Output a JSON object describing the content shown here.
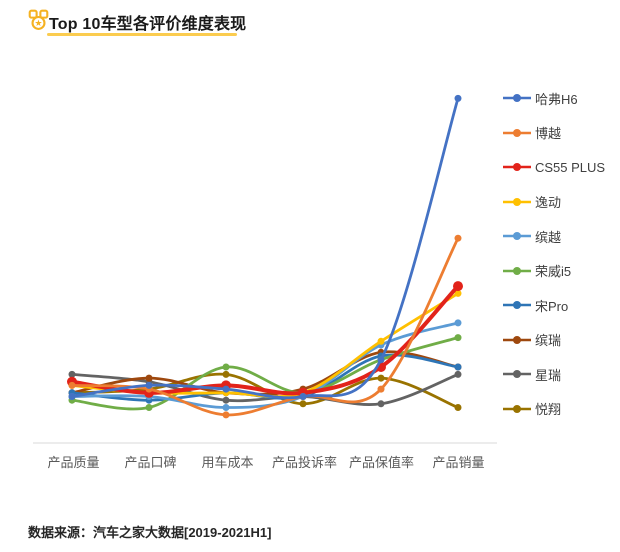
{
  "header": {
    "title": "Top 10车型各评价维度表现",
    "icon": "medal-icon"
  },
  "chart_data": {
    "type": "line",
    "title": "Top 10车型各评价维度表现",
    "categories": [
      "产品质量",
      "产品口碑",
      "用车成本",
      "产品投诉率",
      "产品保值率",
      "产品销量"
    ],
    "series": [
      {
        "name": "哈弗H6",
        "color": "#4472C4",
        "line_width": 2.8,
        "marker_r": 3.5,
        "values": [
          14,
          17,
          16,
          14,
          24,
          95
        ]
      },
      {
        "name": "博越",
        "color": "#ED7D31",
        "line_width": 2.8,
        "marker_r": 3.5,
        "values": [
          17,
          16,
          9,
          14,
          16,
          57
        ]
      },
      {
        "name": "CS55 PLUS",
        "color": "#E2231A",
        "line_width": 4,
        "marker_r": 5,
        "values": [
          18,
          15,
          17,
          15,
          22,
          44
        ]
      },
      {
        "name": "逸动",
        "color": "#FFC000",
        "line_width": 2.8,
        "marker_r": 3.5,
        "values": [
          17,
          15,
          15,
          15,
          29,
          42
        ]
      },
      {
        "name": "缤越",
        "color": "#5B9BD5",
        "line_width": 2.8,
        "marker_r": 3.5,
        "values": [
          14,
          14,
          11,
          14,
          28,
          34
        ]
      },
      {
        "name": "荣威i5",
        "color": "#70AD47",
        "line_width": 2.8,
        "marker_r": 3.5,
        "values": [
          13,
          11,
          22,
          15,
          24,
          30
        ]
      },
      {
        "name": "宋Pro",
        "color": "#2E75B6",
        "line_width": 2.8,
        "marker_r": 3.5,
        "values": [
          15,
          13,
          15,
          14,
          25,
          22
        ]
      },
      {
        "name": "缤瑞",
        "color": "#9E480E",
        "line_width": 2.8,
        "marker_r": 3.5,
        "values": [
          15,
          19,
          15,
          16,
          26,
          22
        ]
      },
      {
        "name": "星瑞",
        "color": "#636363",
        "line_width": 2.8,
        "marker_r": 3.5,
        "values": [
          20,
          18,
          13,
          14,
          12,
          20
        ]
      },
      {
        "name": "悦翔",
        "color": "#997300",
        "line_width": 2.8,
        "marker_r": 3.5,
        "values": [
          15,
          16,
          20,
          12,
          19,
          11
        ]
      }
    ],
    "ylim": [
      0,
      100
    ],
    "xlabel": "",
    "ylabel": "",
    "grid": false,
    "y_axis_visible": false,
    "legend_position": "right",
    "smooth": true,
    "markers": true
  },
  "footer": {
    "source": "数据来源：汽车之家大数据[2019-2021H1]"
  },
  "colors": {
    "accent_yellow": "#F5B222",
    "title_underline": "#FBCC4F",
    "axis_line": "#D9D9D9",
    "axis_label_text": "#595959",
    "legend_label_text": "#404040"
  }
}
